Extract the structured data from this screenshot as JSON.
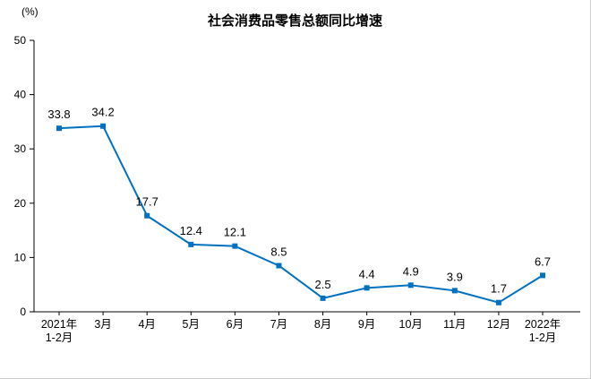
{
  "chart_data": {
    "type": "line",
    "title": "社会消费品零售总额同比增速",
    "unit": "(%)",
    "categories": [
      "2021年\n1-2月",
      "3月",
      "4月",
      "5月",
      "6月",
      "7月",
      "8月",
      "9月",
      "10月",
      "11月",
      "12月",
      "2022年\n1-2月"
    ],
    "values": [
      33.8,
      34.2,
      17.7,
      12.4,
      12.1,
      8.5,
      2.5,
      4.4,
      4.9,
      3.9,
      1.7,
      6.7
    ],
    "ylim": [
      0,
      50
    ],
    "ytick_step": 10,
    "xlabel": "",
    "ylabel": "(%)",
    "grid": false,
    "legend": "none",
    "line_color": "#0070C0",
    "marker": "square",
    "axis_color": "#000000",
    "label_color": "#000000"
  }
}
